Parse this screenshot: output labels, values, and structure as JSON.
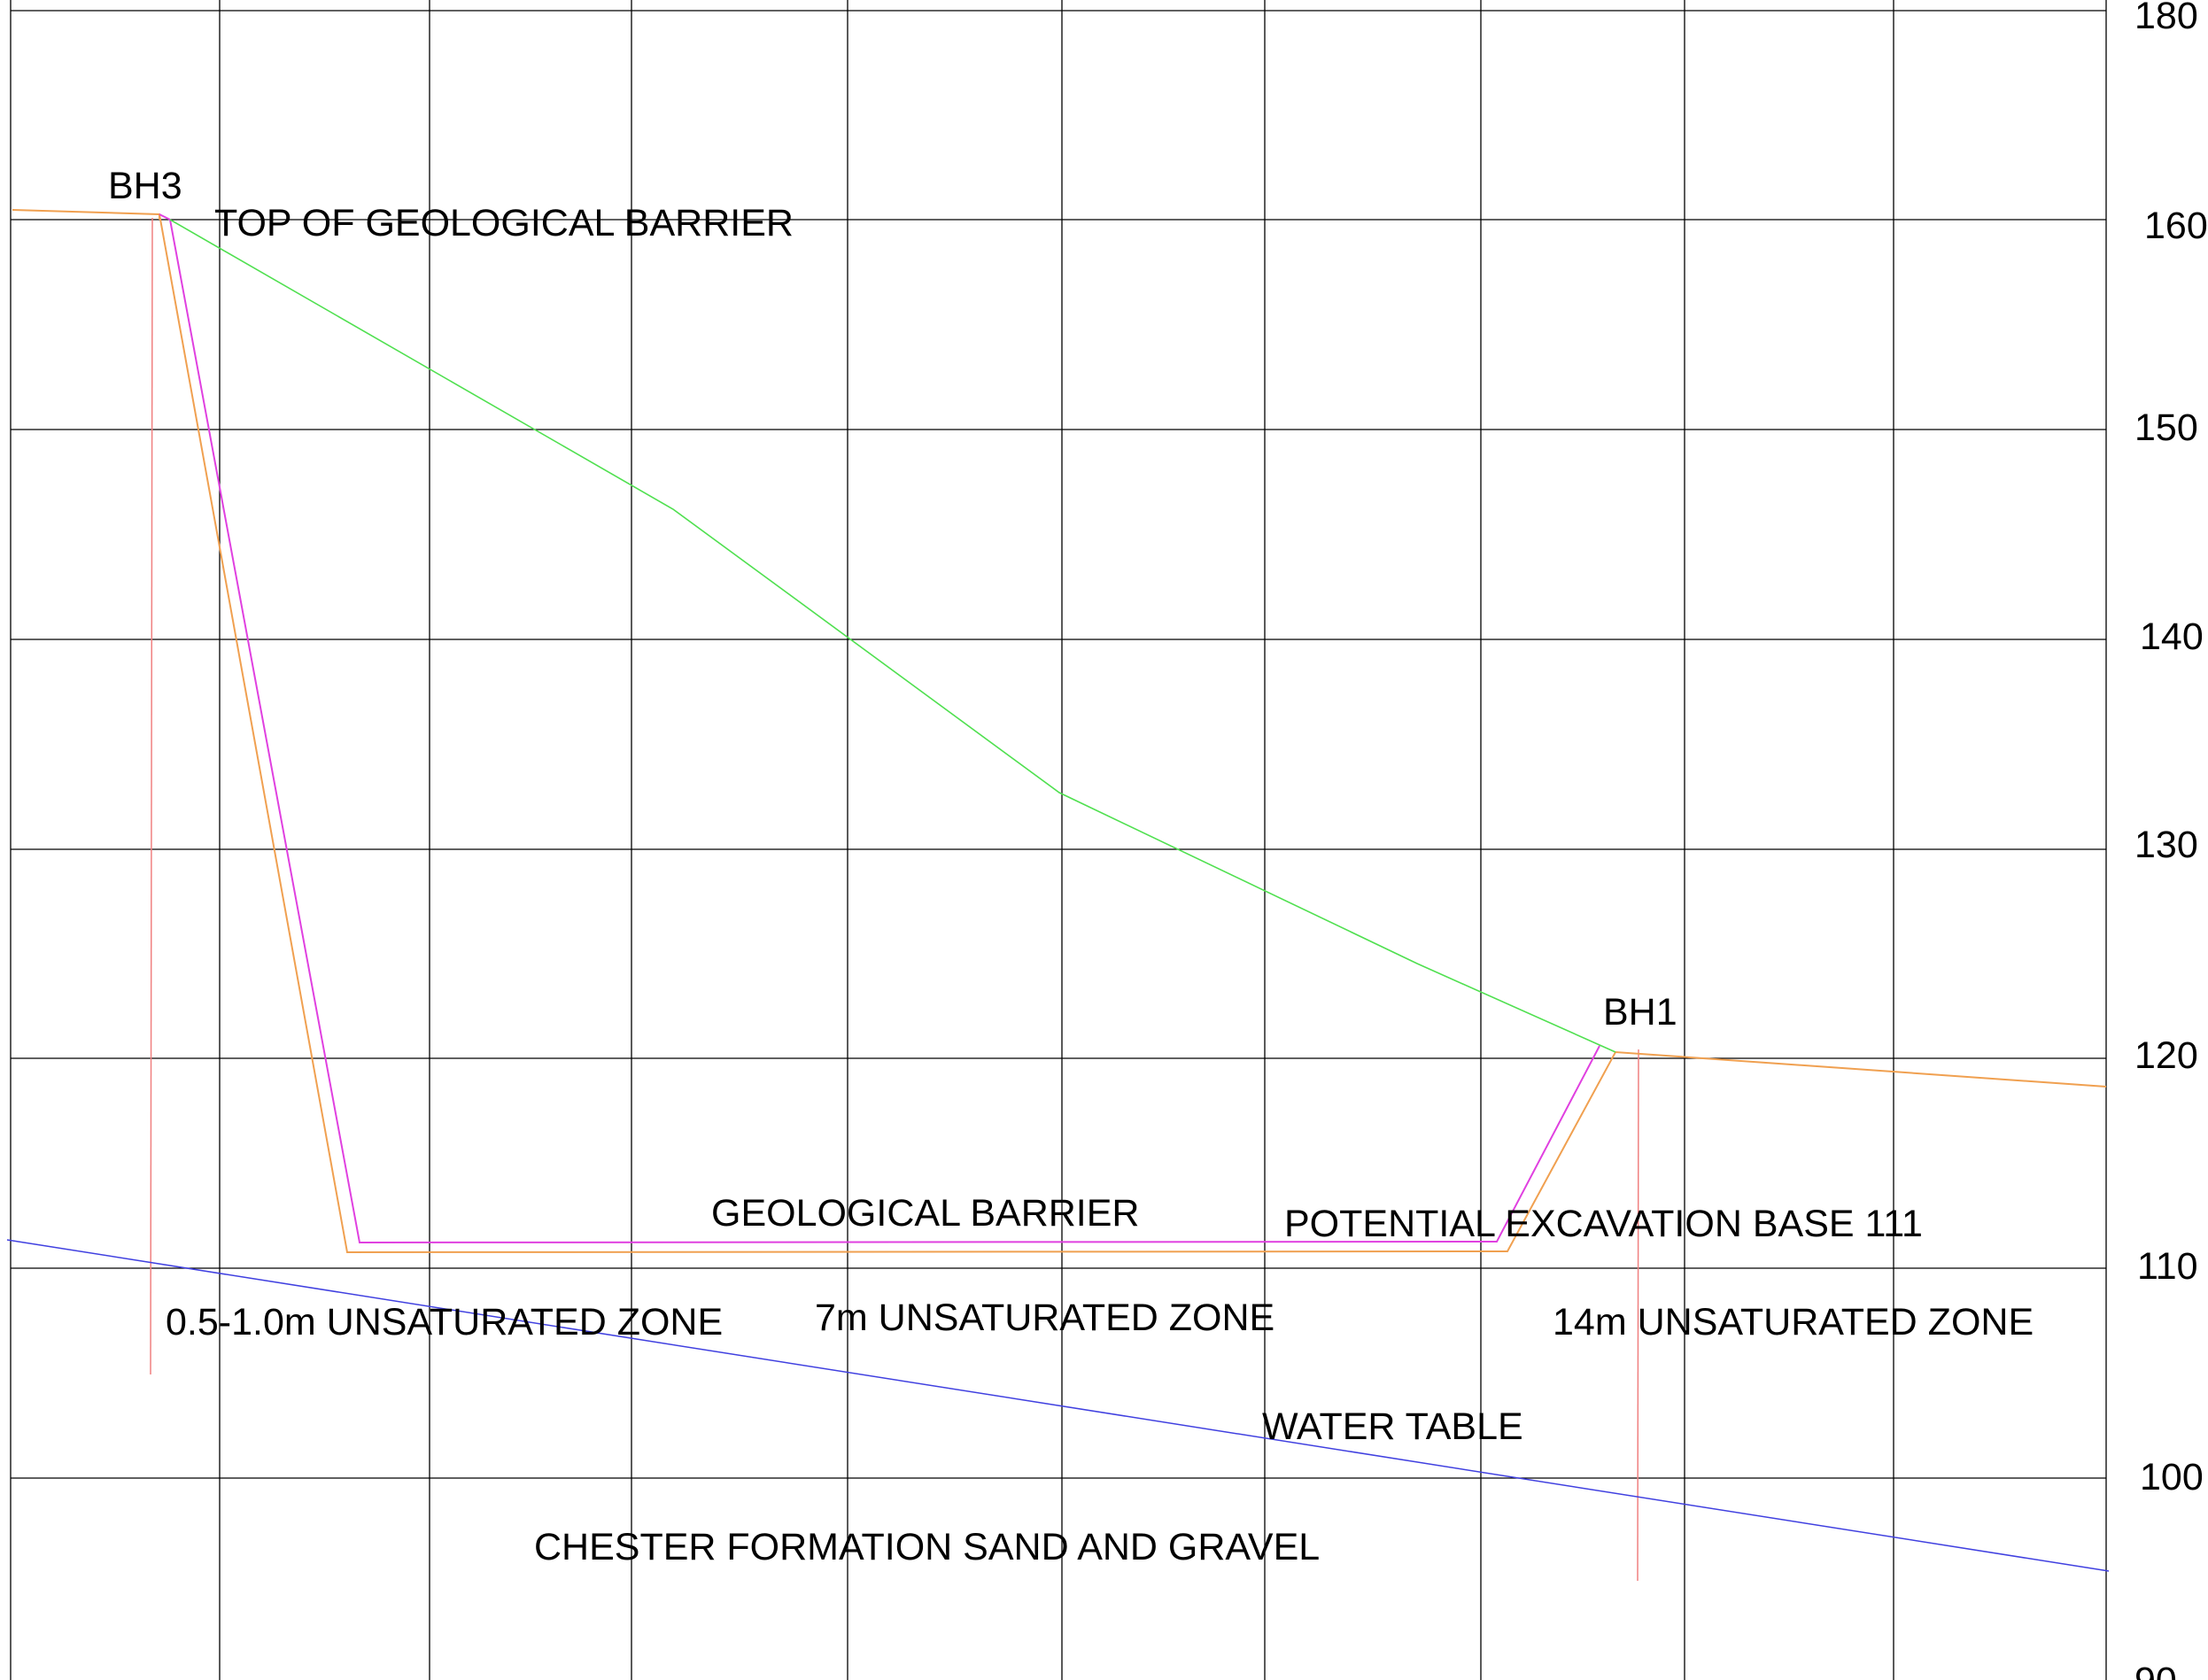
{
  "axis": {
    "ticks": [
      "180",
      "160",
      "150",
      "140",
      "130",
      "120",
      "110",
      "100",
      "90"
    ]
  },
  "labels": {
    "bh3": "BH3",
    "bh1": "BH1",
    "top_barrier": "TOP OF GEOLOGICAL BARRIER",
    "geo_barrier": "GEOLOGICAL BARRIER",
    "excavation_base": "POTENTIAL EXCAVATION BASE 111",
    "unsat_left": "0.5-1.0m UNSATURATED ZONE",
    "unsat_mid": "7m UNSATURATED ZONE",
    "unsat_right": "14m UNSATURATED ZONE",
    "water_table": "WATER TABLE",
    "formation": "CHESTER FORMATION  SAND AND GRAVEL"
  },
  "colors": {
    "grid": "#000000",
    "ground_surface": "#f0a050",
    "geological_barrier_top": "#e040e0",
    "excavation_base": "#f0a050",
    "slope_line": "#50e050",
    "water_table": "#4040e0",
    "borehole": "#f08080"
  }
}
